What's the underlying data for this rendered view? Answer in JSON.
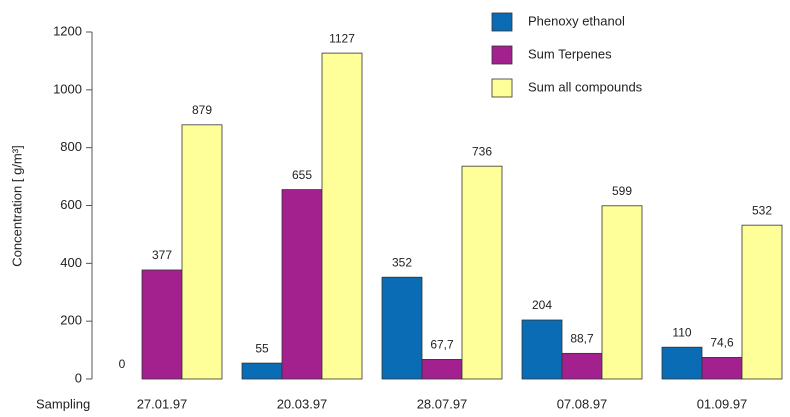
{
  "chart_data": {
    "type": "bar",
    "ylabel": "Concentration [ g/m³]",
    "xlabel": "Sampling",
    "categories": [
      "27.01.97",
      "20.03.97",
      "28.07.97",
      "07.08.97",
      "01.09.97"
    ],
    "series": [
      {
        "name": "Phenoxy ethanol",
        "color": "#0a6cb5",
        "values": [
          0,
          55,
          352,
          204,
          110
        ]
      },
      {
        "name": "Sum Terpenes",
        "color": "#a3218f",
        "values": [
          377,
          655,
          67.7,
          88.7,
          74.6
        ],
        "value_labels": [
          "377",
          "655",
          "67,7",
          "88,7",
          "74,6"
        ]
      },
      {
        "name": "Sum all compounds",
        "color": "#ffff99",
        "values": [
          879,
          1127,
          736,
          599,
          532
        ]
      }
    ],
    "ylim": [
      0,
      1200
    ],
    "yticks": [
      0,
      200,
      400,
      600,
      800,
      1000,
      1200
    ],
    "legend": "top-right"
  }
}
